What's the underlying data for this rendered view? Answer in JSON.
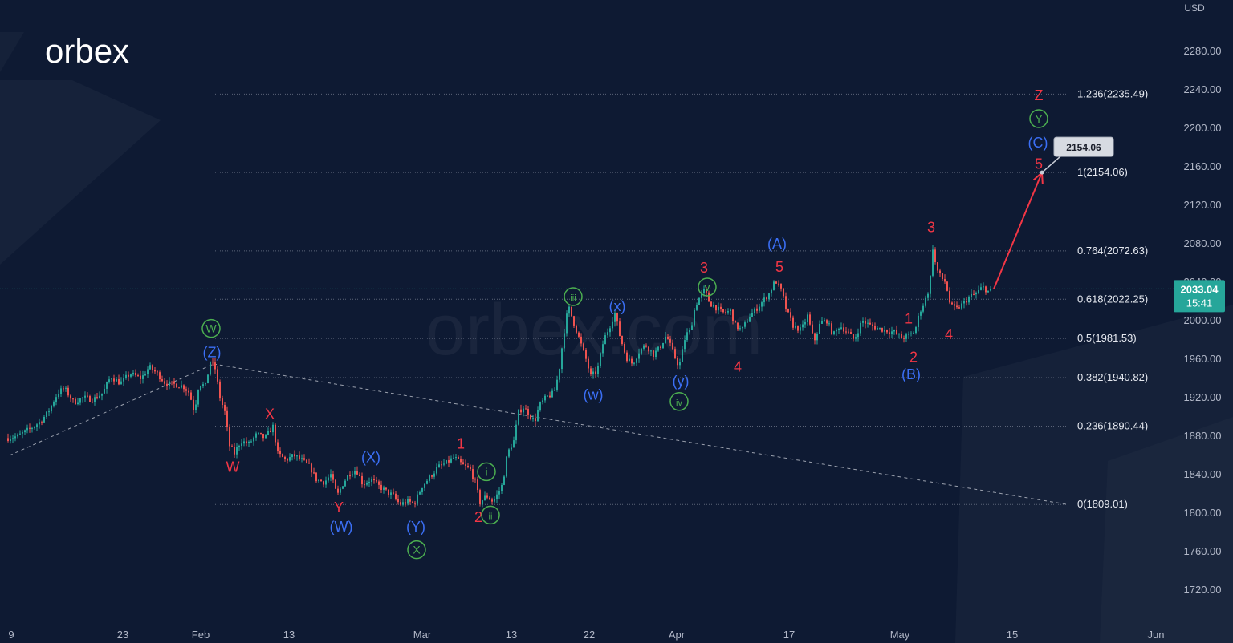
{
  "logo": {
    "text": "orbex",
    "watermark": "orbex.com"
  },
  "colors": {
    "background": "#0e1a33",
    "axis_text": "#b2b8c8",
    "grid": "#5b6478",
    "bull": "#26a69a",
    "bear": "#ef5350",
    "wave_red": "#f23645",
    "wave_blue": "#3b6ff5",
    "wave_green": "#4caf50",
    "price_badge": "#26a69a",
    "target_arrow": "#f23645"
  },
  "chart_data": {
    "type": "candlestick",
    "title": "",
    "currency_label": "USD",
    "ylim": [
      1680,
      2320
    ],
    "y_ticks": [
      1720,
      1760,
      1800,
      1840,
      1880,
      1920,
      1960,
      2000,
      2040,
      2080,
      2120,
      2160,
      2200,
      2240,
      2280
    ],
    "y_tick_labels": [
      "1720.00",
      "1760.00",
      "1800.00",
      "1840.00",
      "1880.00",
      "1920.00",
      "1960.00",
      "2000.00",
      "2040.00",
      "2080.00",
      "2120.00",
      "2160.00",
      "2200.00",
      "2240.00",
      "2280.00"
    ],
    "x_tick_labels": [
      "9",
      "23",
      "Feb",
      "13",
      "Mar",
      "13",
      "22",
      "Apr",
      "17",
      "May",
      "15",
      "Jun"
    ],
    "current_price": {
      "value": 2033.04,
      "label": "2033.04",
      "countdown": "15:41"
    },
    "fib_levels": [
      {
        "ratio": "1.236",
        "value": 2235.49,
        "label": "1.236(2235.49)"
      },
      {
        "ratio": "1",
        "value": 2154.06,
        "label": "1(2154.06)"
      },
      {
        "ratio": "0.764",
        "value": 2072.63,
        "label": "0.764(2072.63)"
      },
      {
        "ratio": "0.618",
        "value": 2022.25,
        "label": "0.618(2022.25)"
      },
      {
        "ratio": "0.5",
        "value": 1981.53,
        "label": "0.5(1981.53)"
      },
      {
        "ratio": "0.382",
        "value": 1940.82,
        "label": "0.382(1940.82)"
      },
      {
        "ratio": "0.236",
        "value": 1890.44,
        "label": "0.236(1890.44)"
      },
      {
        "ratio": "0",
        "value": 1809.01,
        "label": "0(1809.01)"
      }
    ],
    "target": {
      "value": 2154.06,
      "label": "2154.06"
    },
    "price_path": [
      [
        0,
        1860
      ],
      [
        10,
        1878
      ],
      [
        22,
        1880
      ],
      [
        38,
        1888
      ],
      [
        50,
        1895
      ],
      [
        60,
        1905
      ],
      [
        72,
        1925
      ],
      [
        80,
        1930
      ],
      [
        92,
        1915
      ],
      [
        104,
        1920
      ],
      [
        116,
        1918
      ],
      [
        128,
        1925
      ],
      [
        138,
        1942
      ],
      [
        150,
        1935
      ],
      [
        162,
        1945
      ],
      [
        176,
        1940
      ],
      [
        186,
        1952
      ],
      [
        196,
        1945
      ],
      [
        206,
        1935
      ],
      [
        216,
        1934
      ],
      [
        228,
        1932
      ],
      [
        236,
        1925
      ],
      [
        242,
        1905
      ],
      [
        248,
        1935
      ],
      [
        256,
        1932
      ],
      [
        262,
        1958
      ],
      [
        268,
        1950
      ],
      [
        274,
        1920
      ],
      [
        280,
        1905
      ],
      [
        286,
        1870
      ],
      [
        292,
        1862
      ],
      [
        300,
        1875
      ],
      [
        310,
        1872
      ],
      [
        320,
        1882
      ],
      [
        330,
        1878
      ],
      [
        340,
        1890
      ],
      [
        346,
        1862
      ],
      [
        356,
        1855
      ],
      [
        366,
        1860
      ],
      [
        376,
        1855
      ],
      [
        386,
        1848
      ],
      [
        394,
        1835
      ],
      [
        404,
        1832
      ],
      [
        412,
        1840
      ],
      [
        420,
        1818
      ],
      [
        428,
        1832
      ],
      [
        436,
        1842
      ],
      [
        444,
        1845
      ],
      [
        452,
        1830
      ],
      [
        462,
        1835
      ],
      [
        472,
        1828
      ],
      [
        482,
        1822
      ],
      [
        490,
        1818
      ],
      [
        498,
        1809
      ],
      [
        508,
        1812
      ],
      [
        516,
        1810
      ],
      [
        526,
        1828
      ],
      [
        536,
        1838
      ],
      [
        546,
        1848
      ],
      [
        556,
        1852
      ],
      [
        566,
        1858
      ],
      [
        576,
        1850
      ],
      [
        586,
        1845
      ],
      [
        592,
        1832
      ],
      [
        598,
        1811
      ],
      [
        606,
        1818
      ],
      [
        614,
        1812
      ],
      [
        620,
        1820
      ],
      [
        626,
        1830
      ],
      [
        632,
        1862
      ],
      [
        640,
        1875
      ],
      [
        646,
        1905
      ],
      [
        652,
        1910
      ],
      [
        660,
        1902
      ],
      [
        666,
        1895
      ],
      [
        672,
        1912
      ],
      [
        680,
        1920
      ],
      [
        690,
        1925
      ],
      [
        696,
        1945
      ],
      [
        702,
        1985
      ],
      [
        708,
        2015
      ],
      [
        716,
        1995
      ],
      [
        724,
        1975
      ],
      [
        730,
        1960
      ],
      [
        736,
        1942
      ],
      [
        744,
        1948
      ],
      [
        752,
        1980
      ],
      [
        760,
        1995
      ],
      [
        766,
        2008
      ],
      [
        772,
        1985
      ],
      [
        780,
        1962
      ],
      [
        788,
        1955
      ],
      [
        796,
        1968
      ],
      [
        804,
        1975
      ],
      [
        814,
        1965
      ],
      [
        822,
        1972
      ],
      [
        830,
        1985
      ],
      [
        838,
        1968
      ],
      [
        846,
        1952
      ],
      [
        854,
        1985
      ],
      [
        860,
        1990
      ],
      [
        866,
        2015
      ],
      [
        872,
        2025
      ],
      [
        878,
        2032
      ],
      [
        884,
        2018
      ],
      [
        890,
        2015
      ],
      [
        900,
        2008
      ],
      [
        910,
        2010
      ],
      [
        916,
        1995
      ],
      [
        924,
        1990
      ],
      [
        934,
        2005
      ],
      [
        942,
        2012
      ],
      [
        950,
        2020
      ],
      [
        958,
        2028
      ],
      [
        966,
        2042
      ],
      [
        974,
        2030
      ],
      [
        980,
        2010
      ],
      [
        988,
        1995
      ],
      [
        998,
        1990
      ],
      [
        1006,
        2005
      ],
      [
        1014,
        1978
      ],
      [
        1022,
        1998
      ],
      [
        1030,
        2000
      ],
      [
        1038,
        1985
      ],
      [
        1046,
        1995
      ],
      [
        1056,
        1988
      ],
      [
        1064,
        1980
      ],
      [
        1074,
        2000
      ],
      [
        1084,
        1995
      ],
      [
        1094,
        1992
      ],
      [
        1104,
        1990
      ],
      [
        1114,
        1988
      ],
      [
        1124,
        1982
      ],
      [
        1134,
        1985
      ],
      [
        1140,
        1990
      ],
      [
        1146,
        2010
      ],
      [
        1152,
        2020
      ],
      [
        1158,
        2035
      ],
      [
        1162,
        2076
      ],
      [
        1166,
        2055
      ],
      [
        1172,
        2045
      ],
      [
        1178,
        2040
      ],
      [
        1184,
        2015
      ],
      [
        1192,
        2012
      ],
      [
        1200,
        2018
      ],
      [
        1208,
        2025
      ],
      [
        1216,
        2028
      ],
      [
        1224,
        2035
      ],
      [
        1232,
        2030
      ],
      [
        1238,
        2033
      ]
    ],
    "trendlines": [
      {
        "from": [
          12,
          1860
        ],
        "to": [
          266,
          1955
        ]
      },
      {
        "from": [
          266,
          1955
        ],
        "to": [
          1330,
          1809
        ]
      }
    ],
    "target_arrow": {
      "from": [
        1238,
        2033
      ],
      "to": [
        1298,
        2154
      ]
    },
    "wave_labels": [
      {
        "text": "W",
        "x": 263,
        "price": 1992,
        "color": "green",
        "circled": true
      },
      {
        "text": "(Z)",
        "x": 264,
        "price": 1967,
        "color": "blue"
      },
      {
        "text": "X",
        "x": 336,
        "price": 1903,
        "color": "red"
      },
      {
        "text": "W",
        "x": 290,
        "price": 1848,
        "color": "red"
      },
      {
        "text": "(X)",
        "x": 462,
        "price": 1858,
        "color": "blue"
      },
      {
        "text": "Y",
        "x": 422,
        "price": 1806,
        "color": "red"
      },
      {
        "text": "(W)",
        "x": 425,
        "price": 1786,
        "color": "blue"
      },
      {
        "text": "(Y)",
        "x": 518,
        "price": 1786,
        "color": "blue"
      },
      {
        "text": "X",
        "x": 519,
        "price": 1762,
        "color": "green",
        "circled": true
      },
      {
        "text": "1",
        "x": 574,
        "price": 1872,
        "color": "red"
      },
      {
        "text": "i",
        "x": 606,
        "price": 1843,
        "color": "green",
        "circled": true
      },
      {
        "text": "2",
        "x": 596,
        "price": 1796,
        "color": "red"
      },
      {
        "text": "ii",
        "x": 611,
        "price": 1798,
        "color": "green",
        "circled": true
      },
      {
        "text": "iii",
        "x": 714,
        "price": 2025,
        "color": "green",
        "circled": true
      },
      {
        "text": "(x)",
        "x": 769,
        "price": 2015,
        "color": "blue"
      },
      {
        "text": "(w)",
        "x": 739,
        "price": 1923,
        "color": "blue"
      },
      {
        "text": "3",
        "x": 877,
        "price": 2055,
        "color": "red"
      },
      {
        "text": "v",
        "x": 881,
        "price": 2035,
        "color": "green",
        "circled": true
      },
      {
        "text": "(y)",
        "x": 848,
        "price": 1937,
        "color": "blue"
      },
      {
        "text": "iv",
        "x": 846,
        "price": 1916,
        "color": "green",
        "circled": true
      },
      {
        "text": "4",
        "x": 919,
        "price": 1952,
        "color": "red"
      },
      {
        "text": "(A)",
        "x": 968,
        "price": 2080,
        "color": "blue"
      },
      {
        "text": "5",
        "x": 971,
        "price": 2056,
        "color": "red"
      },
      {
        "text": "3",
        "x": 1160,
        "price": 2097,
        "color": "red"
      },
      {
        "text": "1",
        "x": 1132,
        "price": 2002,
        "color": "red"
      },
      {
        "text": "4",
        "x": 1182,
        "price": 1986,
        "color": "red"
      },
      {
        "text": "2",
        "x": 1138,
        "price": 1962,
        "color": "red"
      },
      {
        "text": "(B)",
        "x": 1135,
        "price": 1944,
        "color": "blue"
      },
      {
        "text": "Z",
        "x": 1294,
        "price": 2234,
        "color": "red"
      },
      {
        "text": "Y",
        "x": 1294,
        "price": 2210,
        "color": "green",
        "circled": true
      },
      {
        "text": "(C)",
        "x": 1293,
        "price": 2185,
        "color": "blue"
      },
      {
        "text": "5",
        "x": 1294,
        "price": 2163,
        "color": "red"
      }
    ]
  }
}
